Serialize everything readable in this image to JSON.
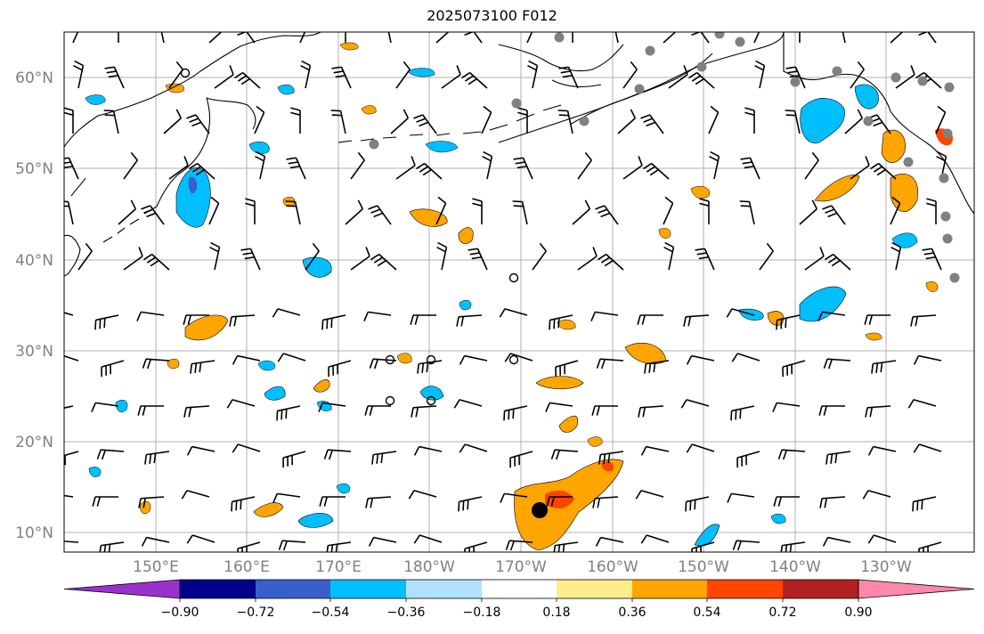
{
  "title": "2025073100 F012",
  "map": {
    "lat_labels": [
      "10°N",
      "20°N",
      "30°N",
      "40°N",
      "50°N",
      "60°N"
    ],
    "lon_labels": [
      "150°E",
      "160°E",
      "170°E",
      "180°W",
      "170°W",
      "160°W",
      "150°W",
      "140°W",
      "130°W"
    ],
    "label_color": "#808080",
    "gridline_color": "#b0b0b0",
    "coastline_color": "#000000"
  },
  "colorbar": {
    "tick_labels": [
      "−0.90",
      "−0.72",
      "−0.54",
      "−0.36",
      "−0.18",
      "0.18",
      "0.36",
      "0.54",
      "0.72",
      "0.90"
    ],
    "colors": [
      "#9932cc",
      "#00008b",
      "#3a5fcd",
      "#00bfff",
      "#b0e2ff",
      "#ffffff",
      "#ffec8b",
      "#ffa500",
      "#ff4500",
      "#b22222",
      "#ff88aa"
    ]
  },
  "markers": {
    "station_color": "#808080",
    "center_marker_color": "#000000"
  }
}
